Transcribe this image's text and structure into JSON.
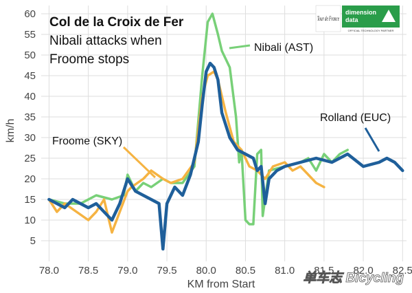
{
  "chart_data": {
    "type": "line",
    "title": "Col de la Croix de Fer",
    "subtitle_lines": [
      "Nibali attacks when",
      "Froome stops"
    ],
    "xlabel": "KM from Start",
    "ylabel": "km/h",
    "xlim": [
      77.9,
      82.55
    ],
    "ylim": [
      0,
      62
    ],
    "xticks": [
      "78.0",
      "78.5",
      "79.0",
      "79.5",
      "80.0",
      "80.5",
      "81.0",
      "81.5",
      "82.0",
      "82.5"
    ],
    "yticks": [
      "5",
      "10",
      "15",
      "20",
      "25",
      "30",
      "35",
      "40",
      "45",
      "50",
      "55",
      "60"
    ],
    "grid": true,
    "legend": "none",
    "series": [
      {
        "name": "Nibali (AST)",
        "color": "#78d078",
        "x": [
          78.0,
          78.2,
          78.4,
          78.6,
          78.8,
          78.95,
          79.0,
          79.1,
          79.2,
          79.3,
          79.45,
          79.55,
          79.7,
          79.85,
          79.95,
          80.02,
          80.08,
          80.15,
          80.2,
          80.3,
          80.38,
          80.42,
          80.45,
          80.5,
          80.55,
          80.6,
          80.65,
          80.7,
          80.72,
          80.8,
          81.0,
          81.2,
          81.3,
          81.4,
          81.5,
          81.6,
          81.7,
          81.8
        ],
        "values": [
          15,
          14,
          14,
          16,
          15,
          16,
          21,
          17,
          19,
          18,
          20,
          19,
          19,
          23,
          45,
          58,
          60,
          55,
          51,
          47,
          35,
          24,
          27,
          10,
          9,
          9,
          26,
          27,
          11,
          22,
          23,
          24,
          25,
          22,
          26,
          24,
          26,
          27
        ]
      },
      {
        "name": "Froome (SKY)",
        "color": "#f5b342",
        "x": [
          78.0,
          78.1,
          78.2,
          78.35,
          78.5,
          78.6,
          78.7,
          78.8,
          78.9,
          79.0,
          79.05,
          79.2,
          79.3,
          79.45,
          79.55,
          79.7,
          79.85,
          79.95,
          80.02,
          80.1,
          80.15,
          80.25,
          80.35,
          80.45,
          80.55,
          80.65,
          80.75,
          80.85,
          81.0,
          81.1,
          81.2,
          81.3,
          81.4,
          81.5
        ],
        "values": [
          15,
          12,
          14,
          12,
          10,
          12,
          15,
          7,
          12,
          17,
          18,
          20,
          22,
          20,
          19,
          20,
          24,
          40,
          45,
          46,
          44,
          36,
          29,
          27,
          23,
          22,
          20,
          23,
          24,
          22,
          23,
          21,
          19,
          18
        ]
      },
      {
        "name": "Rolland (EUC)",
        "color": "#1f5f9a",
        "x": [
          78.0,
          78.1,
          78.2,
          78.3,
          78.4,
          78.5,
          78.6,
          78.7,
          78.8,
          78.9,
          79.0,
          79.1,
          79.2,
          79.3,
          79.4,
          79.45,
          79.5,
          79.6,
          79.7,
          79.8,
          79.9,
          79.95,
          80.0,
          80.05,
          80.1,
          80.15,
          80.2,
          80.3,
          80.4,
          80.5,
          80.6,
          80.65,
          80.7,
          80.75,
          80.8,
          80.9,
          81.0,
          81.2,
          81.4,
          81.6,
          81.8,
          82.0,
          82.2,
          82.3,
          82.4,
          82.5
        ],
        "values": [
          15,
          14,
          13,
          15,
          14,
          13,
          14,
          12,
          10,
          14,
          20,
          17,
          16,
          15,
          14,
          3,
          14,
          18,
          16,
          21,
          29,
          38,
          46,
          48,
          47,
          44,
          36,
          30,
          27,
          26,
          25,
          22,
          23,
          14,
          20,
          22,
          23,
          24,
          25,
          24,
          26,
          23,
          24,
          25,
          24,
          22
        ]
      }
    ],
    "annotations": [
      {
        "text": "Nibali (AST)",
        "series": "Nibali (AST)"
      },
      {
        "text": "Froome (SKY)",
        "series": "Froome (SKY)"
      },
      {
        "text": "Rolland (EUC)",
        "series": "Rolland (EUC)"
      }
    ]
  },
  "logo": {
    "lines": [
      "dimension",
      "data"
    ],
    "tagline": "OFFICIAL TECHNOLOGY PARTNER",
    "tdf_text": "Tour de France",
    "bg_color": "#2a9d4a"
  },
  "watermark": {
    "text": "单车志 Bicycling"
  }
}
